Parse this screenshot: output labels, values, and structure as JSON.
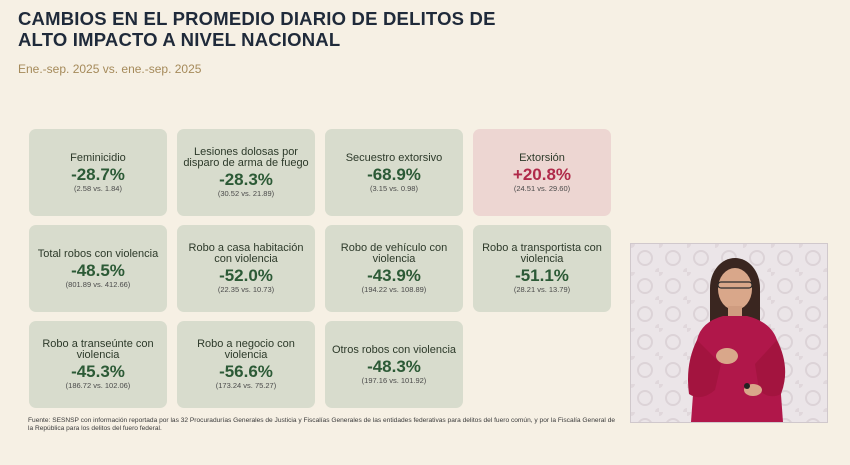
{
  "title": "CAMBIOS EN EL PROMEDIO DIARIO DE DELITOS DE ALTO IMPACTO A NIVEL NACIONAL",
  "subtitle": "Ene.-sep. 2025 vs. ene.-sep. 2025",
  "cards": [
    {
      "label": "Feminicidio",
      "value": "-28.7%",
      "detail": "(2.58 vs. 1.84)"
    },
    {
      "label": "Lesiones dolosas por disparo de arma de fuego",
      "value": "-28.3%",
      "detail": "(30.52 vs. 21.89)"
    },
    {
      "label": "Secuestro extorsivo",
      "value": "-68.9%",
      "detail": "(3.15 vs. 0.98)"
    },
    {
      "label": "Extorsión",
      "value": "+20.8%",
      "detail": "(24.51 vs. 29.60)"
    },
    {
      "label": "Total robos con violencia",
      "value": "-48.5%",
      "detail": "(801.89 vs. 412.66)"
    },
    {
      "label": "Robo a casa habitación con violencia",
      "value": "-52.0%",
      "detail": "(22.35 vs. 10.73)"
    },
    {
      "label": "Robo de vehículo con violencia",
      "value": "-43.9%",
      "detail": "(194.22 vs. 108.89)"
    },
    {
      "label": "Robo a transportista con violencia",
      "value": "-51.1%",
      "detail": "(28.21 vs. 13.79)"
    },
    {
      "label": "Robo a transeúnte con violencia",
      "value": "-45.3%",
      "detail": "(186.72 vs. 102.06)"
    },
    {
      "label": "Robo a negocio con violencia",
      "value": "-56.6%",
      "detail": "(173.24 vs. 75.27)"
    },
    {
      "label": "Otros robos con violencia",
      "value": "-48.3%",
      "detail": "(197.16 vs. 101.92)"
    }
  ],
  "source": "Fuente: SESNSP con información reportada por las 32 Procuradurías Generales de Justicia y Fiscalías Generales de las entidades federativas para delitos del fuero común, y por la Fiscalía General de la República para los delitos del fuero federal.",
  "colors": {
    "decrease_card": "#d8dccd",
    "increase_card": "#edd6d2",
    "decrease_value": "#2c5a36",
    "increase_value": "#b02a4a",
    "background": "#f6f0e4"
  }
}
